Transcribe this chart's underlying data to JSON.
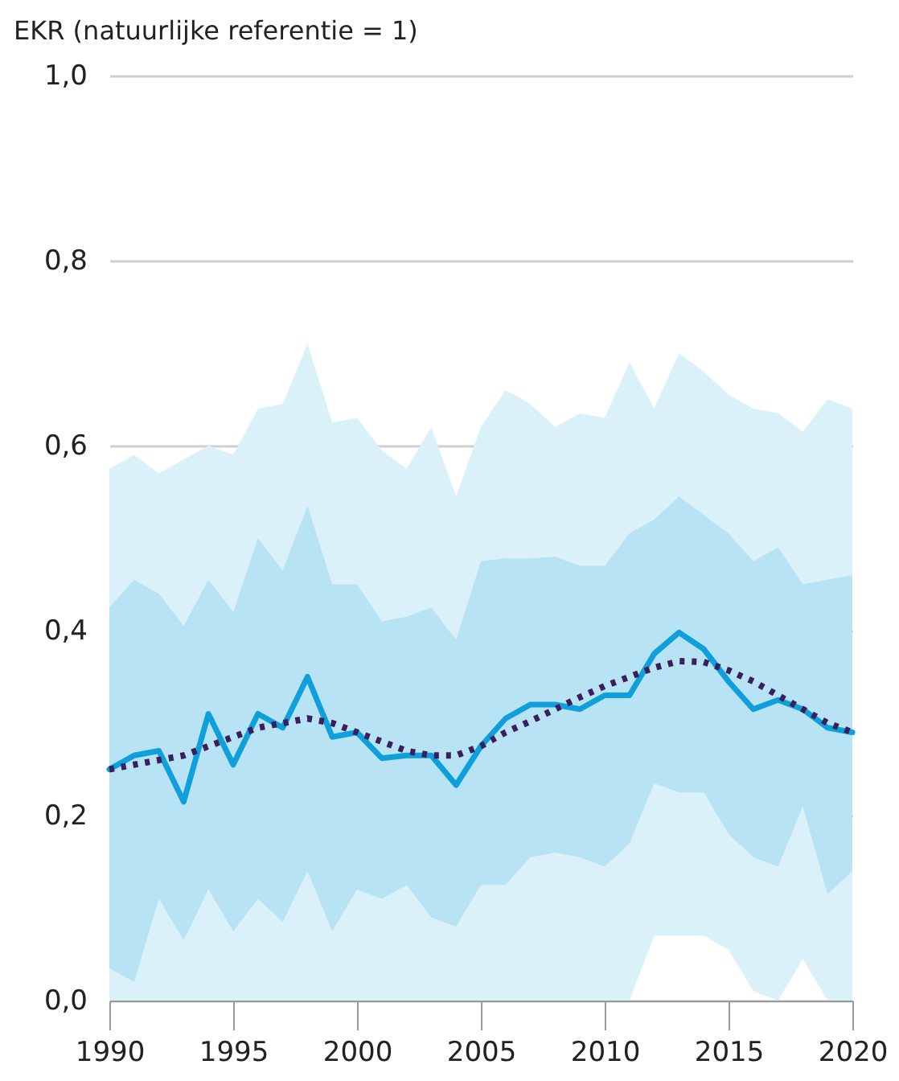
{
  "chart_data": {
    "type": "line",
    "ylabel": "EKR (natuurlijke referentie = 1)",
    "x": [
      1990,
      1991,
      1992,
      1993,
      1994,
      1995,
      1996,
      1997,
      1998,
      1999,
      2000,
      2001,
      2002,
      2003,
      2004,
      2005,
      2006,
      2007,
      2008,
      2009,
      2010,
      2011,
      2012,
      2013,
      2014,
      2015,
      2016,
      2017,
      2018,
      2019,
      2020
    ],
    "series": [
      {
        "color": "#0fa0dc",
        "line_style": "solid",
        "values": [
          0.25,
          0.265,
          0.27,
          0.215,
          0.31,
          0.255,
          0.31,
          0.295,
          0.35,
          0.285,
          0.29,
          0.262,
          0.265,
          0.265,
          0.233,
          0.275,
          0.305,
          0.32,
          0.32,
          0.315,
          0.33,
          0.33,
          0.375,
          0.398,
          0.38,
          0.345,
          0.315,
          0.325,
          0.315,
          0.295,
          0.29
        ],
        "upper": [
          0.425,
          0.455,
          0.44,
          0.405,
          0.455,
          0.42,
          0.5,
          0.465,
          0.535,
          0.45,
          0.45,
          0.41,
          0.415,
          0.425,
          0.39,
          0.475,
          0.478,
          0.478,
          0.48,
          0.47,
          0.47,
          0.505,
          0.52,
          0.545,
          0.525,
          0.505,
          0.475,
          0.49,
          0.45,
          0.455,
          0.46
        ],
        "lower": [
          0.035,
          0.02,
          0.11,
          0.065,
          0.12,
          0.075,
          0.11,
          0.085,
          0.14,
          0.075,
          0.12,
          0.11,
          0.125,
          0.09,
          0.08,
          0.125,
          0.125,
          0.155,
          0.16,
          0.155,
          0.145,
          0.17,
          0.235,
          0.225,
          0.225,
          0.18,
          0.155,
          0.145,
          0.21,
          0.115,
          0.14
        ]
      },
      {
        "color": "#3b1f5c",
        "line_style": "dotted",
        "values": [
          0.25,
          0.255,
          0.26,
          0.265,
          0.275,
          0.285,
          0.295,
          0.3,
          0.305,
          0.3,
          0.29,
          0.28,
          0.27,
          0.265,
          0.265,
          0.275,
          0.29,
          0.302,
          0.315,
          0.328,
          0.34,
          0.35,
          0.36,
          0.367,
          0.366,
          0.357,
          0.345,
          0.33,
          0.315,
          0.3,
          0.29
        ],
        "upper": [
          0.575,
          0.59,
          0.57,
          0.585,
          0.6,
          0.59,
          0.64,
          0.645,
          0.71,
          0.625,
          0.63,
          0.595,
          0.575,
          0.62,
          0.545,
          0.62,
          0.66,
          0.645,
          0.62,
          0.635,
          0.63,
          0.69,
          0.64,
          0.7,
          0.68,
          0.655,
          0.64,
          0.635,
          0.615,
          0.65,
          0.64
        ],
        "lower": [
          0,
          0,
          0,
          0,
          0,
          0,
          0,
          0,
          0,
          0,
          0,
          0,
          0,
          0,
          0,
          0,
          0,
          0,
          0,
          0,
          0,
          0,
          0.07,
          0.07,
          0.07,
          0.055,
          0.01,
          0,
          0.045,
          0,
          0
        ]
      }
    ],
    "xlim": [
      1990,
      2020
    ],
    "xticks": [
      1990,
      1995,
      2000,
      2005,
      2010,
      2015,
      2020
    ],
    "ylim": [
      0,
      1
    ],
    "yticks": [
      {
        "value": 0,
        "label": "0,0"
      },
      {
        "value": 0.2,
        "label": "0,2"
      },
      {
        "value": 0.4,
        "label": "0,4"
      },
      {
        "value": 0.6,
        "label": "0,6"
      },
      {
        "value": 0.8,
        "label": "0,8"
      },
      {
        "value": 1,
        "label": "1,0"
      }
    ],
    "grid": "y",
    "marker": "none"
  }
}
